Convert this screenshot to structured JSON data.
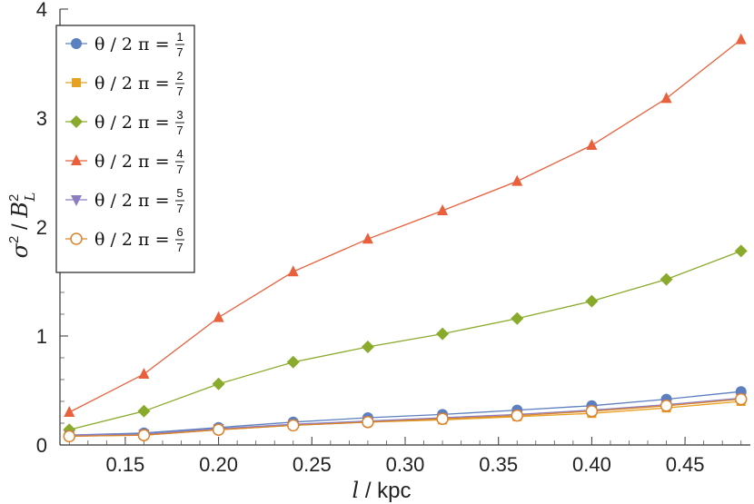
{
  "chart_data": {
    "type": "line",
    "xlabel": {
      "var": "l",
      "unit": " / kpc"
    },
    "ylabel": {
      "sigma": "σ",
      "sup": "2",
      "sep": " / ",
      "b": "B",
      "sub": "L",
      "bsup": "2"
    },
    "xlim": [
      0.115,
      0.485
    ],
    "ylim": [
      0,
      4
    ],
    "x_ticks": [
      "0.15",
      "0.20",
      "0.25",
      "0.30",
      "0.35",
      "0.40",
      "0.45"
    ],
    "x_tick_values": [
      0.15,
      0.2,
      0.25,
      0.3,
      0.35,
      0.4,
      0.45
    ],
    "y_ticks": [
      "0",
      "1",
      "2",
      "3",
      "4"
    ],
    "y_tick_values": [
      0,
      1,
      2,
      3,
      4
    ],
    "legend_position": "top-left",
    "x": [
      0.12,
      0.16,
      0.2,
      0.24,
      0.28,
      0.32,
      0.36,
      0.4,
      0.44,
      0.48
    ],
    "series": [
      {
        "name": "θ / 2 π = 1/7",
        "prefix": "θ / 2 π =",
        "num": "1",
        "den": "7",
        "color": "#5b7fbf",
        "marker": "circle",
        "values": [
          0.09,
          0.11,
          0.16,
          0.21,
          0.25,
          0.28,
          0.32,
          0.36,
          0.42,
          0.49
        ]
      },
      {
        "name": "θ / 2 π = 2/7",
        "prefix": "θ / 2 π =",
        "num": "2",
        "den": "7",
        "color": "#e5a11f",
        "marker": "square",
        "values": [
          0.08,
          0.09,
          0.14,
          0.18,
          0.21,
          0.23,
          0.26,
          0.29,
          0.34,
          0.4
        ]
      },
      {
        "name": "θ / 2 π = 3/7",
        "prefix": "θ / 2 π =",
        "num": "3",
        "den": "7",
        "color": "#8aaa2c",
        "marker": "diamond",
        "values": [
          0.14,
          0.31,
          0.56,
          0.76,
          0.9,
          1.02,
          1.16,
          1.32,
          1.52,
          1.78
        ]
      },
      {
        "name": "θ / 2 π = 4/7",
        "prefix": "θ / 2 π =",
        "num": "4",
        "den": "7",
        "color": "#e8603c",
        "marker": "triangle-up",
        "values": [
          0.3,
          0.65,
          1.17,
          1.59,
          1.89,
          2.15,
          2.42,
          2.75,
          3.18,
          3.72
        ]
      },
      {
        "name": "θ / 2 π = 5/7",
        "prefix": "θ / 2 π =",
        "num": "5",
        "den": "7",
        "color": "#8b7dc0",
        "marker": "triangle-down",
        "values": [
          0.09,
          0.1,
          0.15,
          0.19,
          0.22,
          0.25,
          0.28,
          0.32,
          0.37,
          0.43
        ]
      },
      {
        "name": "θ / 2 π = 6/7",
        "prefix": "θ / 2 π =",
        "num": "6",
        "den": "7",
        "color": "#d9822b",
        "marker": "circle-open",
        "values": [
          0.08,
          0.09,
          0.14,
          0.18,
          0.21,
          0.24,
          0.27,
          0.31,
          0.36,
          0.42
        ]
      }
    ]
  }
}
